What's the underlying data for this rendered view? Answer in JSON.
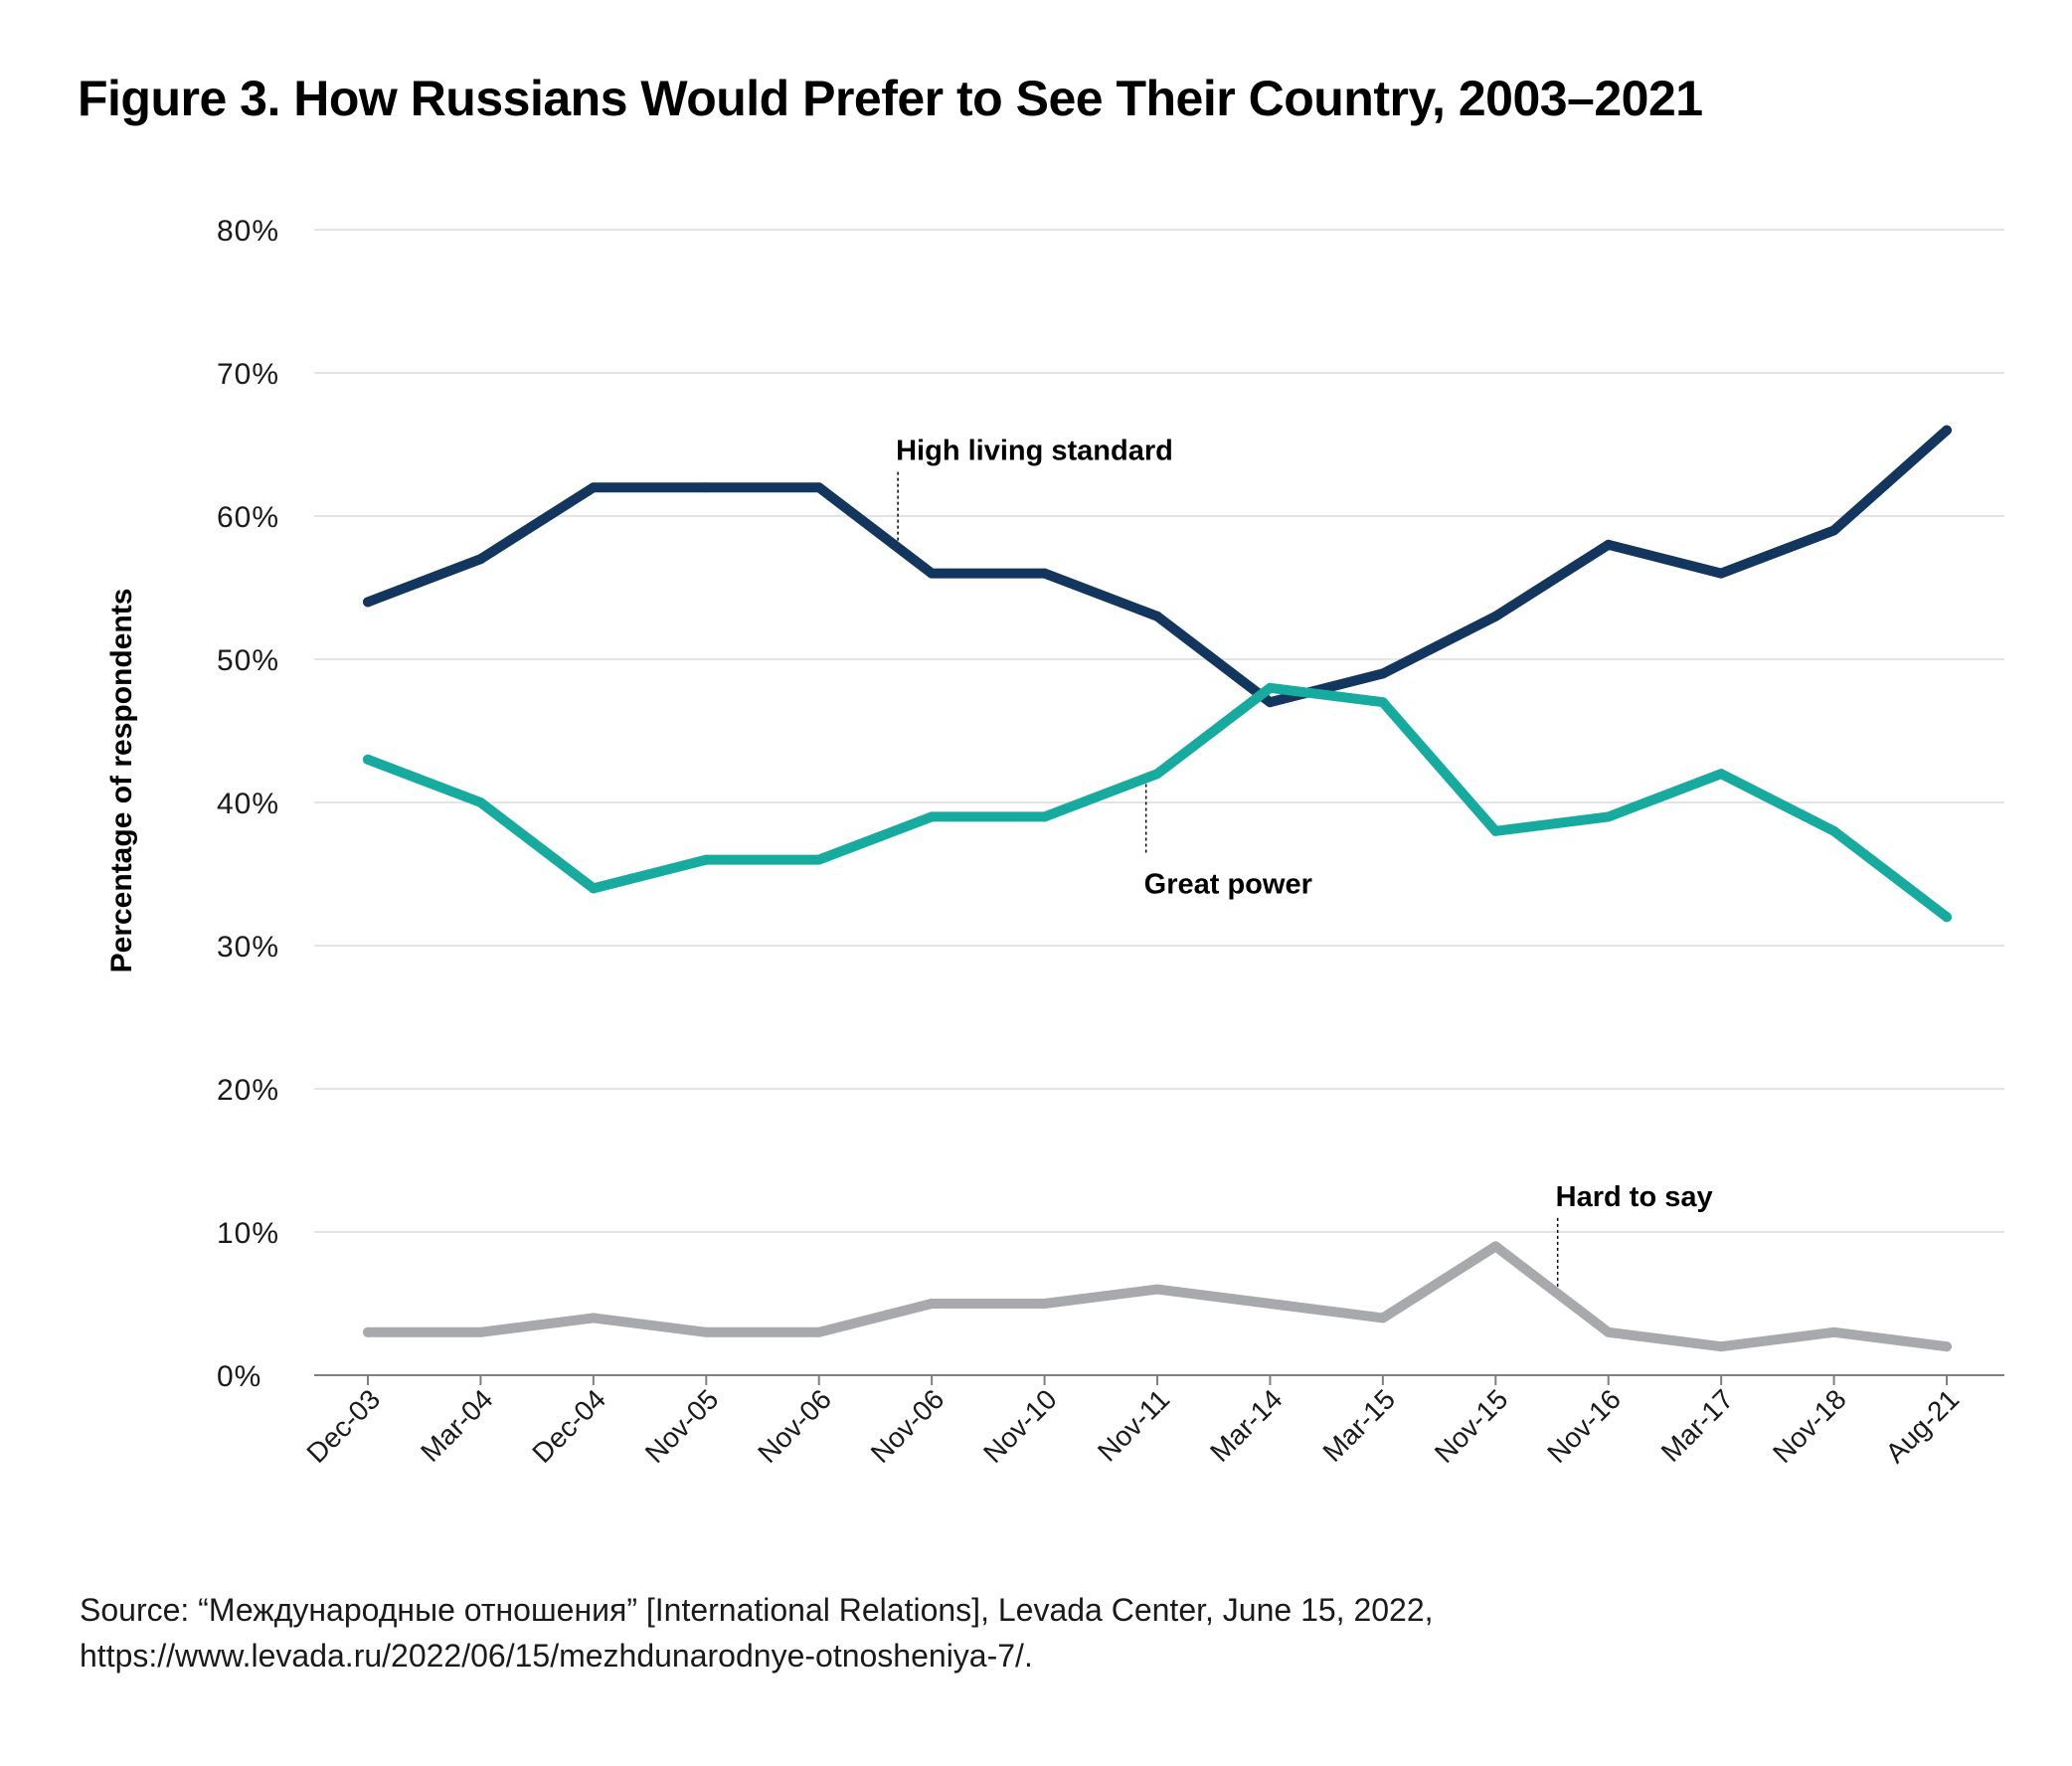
{
  "chart_data": {
    "type": "line",
    "title": "Figure 3. How Russians Would Prefer to See Their Country, 2003–2021",
    "ylabel": "Percentage of respondents",
    "xlabel": "",
    "ylim": [
      0,
      80
    ],
    "yticks": [
      0,
      10,
      20,
      30,
      40,
      50,
      60,
      70,
      80
    ],
    "ytick_labels": [
      "0%",
      "10%",
      "20%",
      "30%",
      "40%",
      "50%",
      "60%",
      "70%",
      "80%"
    ],
    "grid": true,
    "categories": [
      "Dec-03",
      "Mar-04",
      "Dec-04",
      "Nov-05",
      "Nov-06",
      "Nov-06",
      "Nov-10",
      "Nov-11",
      "Mar-14",
      "Mar-15",
      "Nov-15",
      "Nov-16",
      "Mar-17",
      "Nov-18",
      "Aug-21"
    ],
    "series": [
      {
        "name": "High living standard",
        "color": "#13365e",
        "label_at_index": 4.7,
        "label_side": "above",
        "values": [
          54,
          57,
          62,
          62,
          62,
          56,
          56,
          53,
          47,
          49,
          53,
          58,
          56,
          59,
          66
        ]
      },
      {
        "name": "Great power",
        "color": "#17aba0",
        "label_at_index": 6.9,
        "label_side": "below",
        "values": [
          43,
          40,
          34,
          36,
          36,
          39,
          39,
          42,
          48,
          47,
          38,
          39,
          42,
          38,
          32
        ]
      },
      {
        "name": "Hard to say",
        "color": "#a7a9ac",
        "label_at_index": 10.55,
        "label_side": "above",
        "values": [
          3,
          3,
          4,
          3,
          3,
          5,
          5,
          6,
          5,
          4,
          9,
          3,
          2,
          3,
          2
        ]
      }
    ]
  },
  "source": {
    "line1": "Source: “Международные отношения” [International Relations], Levada Center, June 15, 2022,",
    "line2": "https://www.levada.ru/2022/06/15/mezhdunarodnye-otnosheniya-7/."
  }
}
